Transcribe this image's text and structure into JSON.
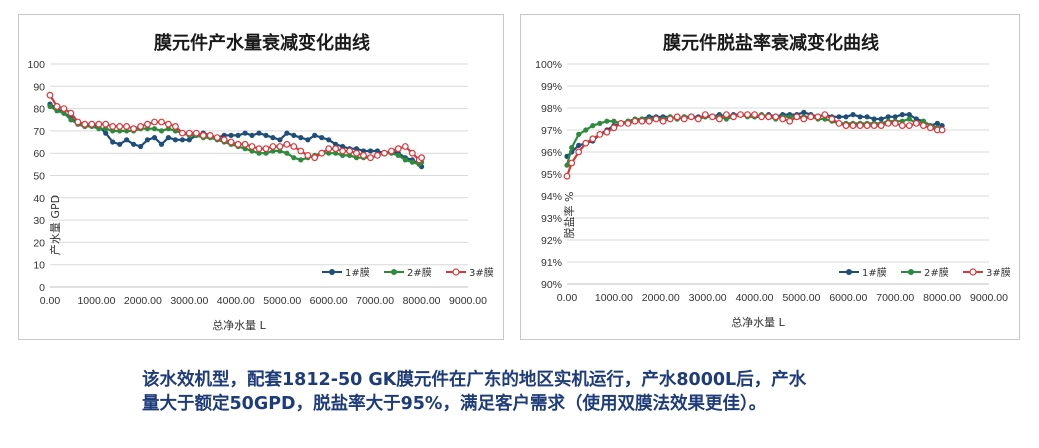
{
  "colors": {
    "series1": "#1f4e79",
    "series2": "#2e8b3d",
    "series3": "#d9373b",
    "caption": "#1f3c7a"
  },
  "caption": {
    "line1": "该水效机型，配套1812-50 GK膜元件在广东的地区实机运行，产水8000L后，产水",
    "line2": "量大于额定50GPD，脱盐率大于95%，满足客户需求（使用双膜法效果更佳）。"
  },
  "chart_data": [
    {
      "type": "line",
      "title": "膜元件产水量衰减变化曲线",
      "xlabel": "总净水量 L",
      "ylabel": "产水量 GPD",
      "xlim": [
        0,
        9000
      ],
      "ylim": [
        0,
        100
      ],
      "x_ticks": [
        "0.00",
        "1000.00",
        "2000.00",
        "3000.00",
        "4000.00",
        "5000.00",
        "6000.00",
        "7000.00",
        "8000.00",
        "9000.00"
      ],
      "y_ticks": [
        "0",
        "10",
        "20",
        "30",
        "40",
        "50",
        "60",
        "70",
        "80",
        "90",
        "100"
      ],
      "grid": true,
      "legend_position": "bottom-right",
      "series": [
        {
          "name": "1#膜",
          "x": [
            0,
            150,
            300,
            450,
            600,
            750,
            900,
            1050,
            1200,
            1350,
            1500,
            1650,
            1800,
            1950,
            2100,
            2250,
            2400,
            2550,
            2700,
            2850,
            3000,
            3150,
            3300,
            3450,
            3600,
            3750,
            3900,
            4050,
            4200,
            4350,
            4500,
            4650,
            4800,
            4950,
            5100,
            5250,
            5400,
            5550,
            5700,
            5850,
            6000,
            6150,
            6300,
            6450,
            6600,
            6750,
            6900,
            7050,
            7200,
            7350,
            7500,
            7650,
            7800,
            7950,
            8000
          ],
          "y": [
            82,
            80,
            78,
            76,
            73,
            72,
            73,
            72,
            69,
            65,
            64,
            66,
            64,
            63,
            66,
            67,
            64,
            67,
            66,
            66,
            66,
            68,
            69,
            68,
            67,
            68,
            68,
            68,
            69,
            68,
            69,
            68,
            67,
            66,
            69,
            68,
            67,
            66,
            68,
            67,
            66,
            64,
            63,
            62,
            62,
            61,
            61,
            61,
            60,
            61,
            60,
            58,
            57,
            55,
            54
          ]
        },
        {
          "name": "2#膜",
          "x": [
            0,
            150,
            300,
            450,
            600,
            750,
            900,
            1050,
            1200,
            1350,
            1500,
            1650,
            1800,
            1950,
            2100,
            2250,
            2400,
            2550,
            2700,
            2850,
            3000,
            3150,
            3300,
            3450,
            3600,
            3750,
            3900,
            4050,
            4200,
            4350,
            4500,
            4650,
            4800,
            4950,
            5100,
            5250,
            5400,
            5550,
            5700,
            5850,
            6000,
            6150,
            6300,
            6450,
            6600,
            6750,
            6900,
            7050,
            7200,
            7350,
            7500,
            7650,
            7800,
            7950,
            8000
          ],
          "y": [
            81,
            79,
            78,
            75,
            73,
            72,
            72,
            71,
            71,
            70,
            70,
            70,
            70,
            71,
            71,
            71,
            70,
            71,
            70,
            69,
            68,
            68,
            67,
            67,
            66,
            65,
            64,
            63,
            62,
            61,
            60,
            60,
            61,
            61,
            60,
            58,
            57,
            58,
            59,
            60,
            60,
            60,
            59,
            59,
            58,
            58,
            58,
            59,
            60,
            60,
            59,
            57,
            56,
            55,
            56
          ]
        },
        {
          "name": "3#膜",
          "x": [
            0,
            150,
            300,
            450,
            600,
            750,
            900,
            1050,
            1200,
            1350,
            1500,
            1650,
            1800,
            1950,
            2100,
            2250,
            2400,
            2550,
            2700,
            2850,
            3000,
            3150,
            3300,
            3450,
            3600,
            3750,
            3900,
            4050,
            4200,
            4350,
            4500,
            4650,
            4800,
            4950,
            5100,
            5250,
            5400,
            5550,
            5700,
            5850,
            6000,
            6150,
            6300,
            6450,
            6600,
            6750,
            6900,
            7050,
            7200,
            7350,
            7500,
            7650,
            7800,
            7950,
            8000
          ],
          "y": [
            86,
            81,
            80,
            78,
            74,
            73,
            73,
            73,
            73,
            72,
            72,
            72,
            71,
            72,
            73,
            74,
            74,
            73,
            72,
            69,
            69,
            69,
            68,
            68,
            67,
            66,
            65,
            64,
            64,
            63,
            62,
            62,
            63,
            63,
            64,
            63,
            61,
            59,
            58,
            60,
            62,
            62,
            61,
            61,
            60,
            59,
            58,
            59,
            60,
            61,
            62,
            63,
            60,
            57,
            58
          ]
        }
      ]
    },
    {
      "type": "line",
      "title": "膜元件脱盐率衰减变化曲线",
      "xlabel": "总净水量 L",
      "ylabel": "脱盐率 %",
      "xlim": [
        0,
        9000
      ],
      "ylim": [
        90,
        100
      ],
      "x_ticks": [
        "0.00",
        "1000.00",
        "2000.00",
        "3000.00",
        "4000.00",
        "5000.00",
        "6000.00",
        "7000.00",
        "8000.00",
        "9000.00"
      ],
      "y_ticks": [
        "90%",
        "91%",
        "92%",
        "93%",
        "94%",
        "95%",
        "96%",
        "97%",
        "98%",
        "99%",
        "100%"
      ],
      "grid": true,
      "legend_position": "bottom-right",
      "series": [
        {
          "name": "1#膜",
          "x": [
            0,
            100,
            250,
            400,
            550,
            700,
            850,
            1000,
            1150,
            1300,
            1450,
            1600,
            1750,
            1900,
            2050,
            2200,
            2350,
            2500,
            2650,
            2800,
            2950,
            3100,
            3250,
            3400,
            3550,
            3700,
            3850,
            4000,
            4150,
            4300,
            4450,
            4600,
            4750,
            4900,
            5050,
            5200,
            5350,
            5500,
            5650,
            5800,
            5950,
            6100,
            6250,
            6400,
            6550,
            6700,
            6850,
            7000,
            7150,
            7300,
            7450,
            7600,
            7750,
            7900,
            8000
          ],
          "y": [
            95.8,
            96.0,
            96.3,
            96.4,
            96.5,
            96.8,
            97.0,
            97.2,
            97.3,
            97.4,
            97.4,
            97.5,
            97.6,
            97.6,
            97.6,
            97.6,
            97.5,
            97.6,
            97.6,
            97.6,
            97.6,
            97.6,
            97.7,
            97.6,
            97.7,
            97.7,
            97.7,
            97.6,
            97.6,
            97.7,
            97.6,
            97.7,
            97.7,
            97.7,
            97.8,
            97.7,
            97.6,
            97.7,
            97.6,
            97.6,
            97.6,
            97.7,
            97.6,
            97.6,
            97.5,
            97.5,
            97.6,
            97.6,
            97.7,
            97.7,
            97.5,
            97.4,
            97.2,
            97.3,
            97.2
          ]
        },
        {
          "name": "2#膜",
          "x": [
            0,
            100,
            250,
            400,
            550,
            700,
            850,
            1000,
            1150,
            1300,
            1450,
            1600,
            1750,
            1900,
            2050,
            2200,
            2350,
            2500,
            2650,
            2800,
            2950,
            3100,
            3250,
            3400,
            3550,
            3700,
            3850,
            4000,
            4150,
            4300,
            4450,
            4600,
            4750,
            4900,
            5050,
            5200,
            5350,
            5500,
            5650,
            5800,
            5950,
            6100,
            6250,
            6400,
            6550,
            6700,
            6850,
            7000,
            7150,
            7300,
            7450,
            7600,
            7750,
            7900,
            8000
          ],
          "y": [
            95.4,
            96.2,
            96.8,
            97.0,
            97.2,
            97.3,
            97.4,
            97.4,
            97.3,
            97.4,
            97.5,
            97.5,
            97.5,
            97.5,
            97.5,
            97.6,
            97.5,
            97.6,
            97.6,
            97.5,
            97.6,
            97.6,
            97.6,
            97.5,
            97.6,
            97.7,
            97.6,
            97.6,
            97.7,
            97.6,
            97.5,
            97.6,
            97.6,
            97.6,
            97.6,
            97.6,
            97.5,
            97.5,
            97.4,
            97.3,
            97.3,
            97.3,
            97.3,
            97.3,
            97.3,
            97.3,
            97.4,
            97.4,
            97.4,
            97.5,
            97.3,
            97.4,
            97.2,
            97.1,
            97.0
          ]
        },
        {
          "name": "3#膜",
          "x": [
            0,
            100,
            250,
            400,
            550,
            700,
            850,
            1000,
            1150,
            1300,
            1450,
            1600,
            1750,
            1900,
            2050,
            2200,
            2350,
            2500,
            2650,
            2800,
            2950,
            3100,
            3250,
            3400,
            3550,
            3700,
            3850,
            4000,
            4150,
            4300,
            4450,
            4600,
            4750,
            4900,
            5050,
            5200,
            5350,
            5500,
            5650,
            5800,
            5950,
            6100,
            6250,
            6400,
            6550,
            6700,
            6850,
            7000,
            7150,
            7300,
            7450,
            7600,
            7750,
            7900,
            8000
          ],
          "y": [
            94.9,
            95.5,
            96.0,
            96.4,
            96.6,
            96.8,
            96.9,
            97.1,
            97.3,
            97.3,
            97.4,
            97.4,
            97.4,
            97.5,
            97.4,
            97.5,
            97.6,
            97.5,
            97.6,
            97.5,
            97.7,
            97.6,
            97.5,
            97.7,
            97.6,
            97.7,
            97.7,
            97.7,
            97.6,
            97.6,
            97.6,
            97.5,
            97.4,
            97.6,
            97.5,
            97.6,
            97.6,
            97.7,
            97.5,
            97.3,
            97.2,
            97.2,
            97.2,
            97.2,
            97.2,
            97.2,
            97.3,
            97.3,
            97.2,
            97.2,
            97.3,
            97.2,
            97.1,
            97.0,
            97.0
          ]
        }
      ]
    }
  ]
}
